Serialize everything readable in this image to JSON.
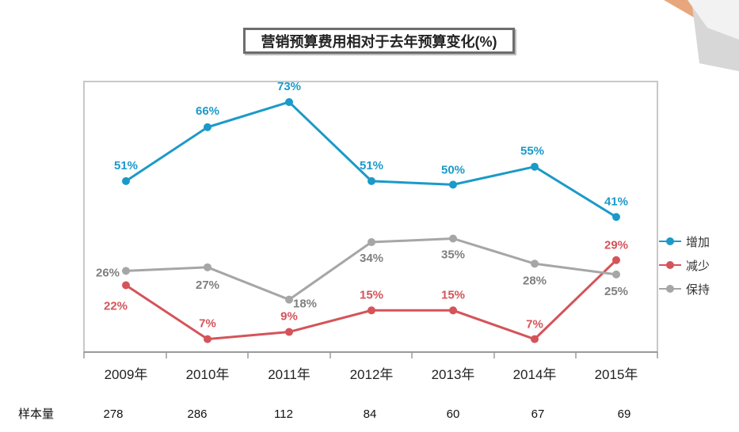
{
  "chart_data": {
    "type": "line",
    "title": "营销预算费用相对于去年预算变化(%)",
    "categories": [
      "2009年",
      "2010年",
      "2011年",
      "2012年",
      "2013年",
      "2014年",
      "2015年"
    ],
    "ylim": [
      0,
      100
    ],
    "series": [
      {
        "name": "增加",
        "color": "#1b9ac9",
        "values": [
          51,
          66,
          73,
          51,
          50,
          55,
          41
        ],
        "labels": [
          "51%",
          "66%",
          "73%",
          "51%",
          "50%",
          "55%",
          "41%"
        ]
      },
      {
        "name": "减少",
        "color": "#d4545a",
        "values": [
          22,
          7,
          9,
          15,
          15,
          7,
          29
        ],
        "labels": [
          "22%",
          "7%",
          "9%",
          "15%",
          "15%",
          "7%",
          "29%"
        ]
      },
      {
        "name": "保持",
        "color": "#a6a6a6",
        "values": [
          26,
          27,
          18,
          34,
          35,
          28,
          25
        ],
        "labels": [
          "26%",
          "27%",
          "18%",
          "34%",
          "35%",
          "28%",
          "25%"
        ]
      }
    ],
    "sample_row": {
      "label": "样本量",
      "values": [
        "278",
        "286",
        "112",
        "84",
        "60",
        "67",
        "69"
      ]
    },
    "legend_position": "right"
  }
}
